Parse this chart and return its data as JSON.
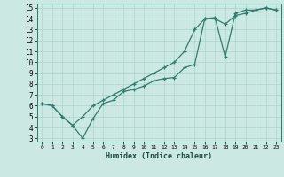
{
  "xlabel": "Humidex (Indice chaleur)",
  "bg_color": "#cce8e2",
  "line_color": "#2e7d6e",
  "grid_color": "#aad4cc",
  "xlim": [
    -0.5,
    23.5
  ],
  "ylim": [
    2.7,
    15.4
  ],
  "xticks": [
    0,
    1,
    2,
    3,
    4,
    5,
    6,
    7,
    8,
    9,
    10,
    11,
    12,
    13,
    14,
    15,
    16,
    17,
    18,
    19,
    20,
    21,
    22,
    23
  ],
  "yticks": [
    3,
    4,
    5,
    6,
    7,
    8,
    9,
    10,
    11,
    12,
    13,
    14,
    15
  ],
  "line1_x": [
    0,
    1,
    2,
    3,
    4,
    5,
    6,
    7,
    8,
    9,
    10,
    11,
    12,
    13,
    14,
    15,
    16,
    17,
    18,
    19,
    20,
    21,
    22,
    23
  ],
  "line1_y": [
    6.2,
    6.0,
    5.0,
    4.2,
    3.0,
    4.8,
    6.2,
    6.5,
    7.3,
    7.5,
    7.8,
    8.3,
    8.5,
    8.6,
    9.5,
    9.8,
    14.0,
    14.1,
    10.5,
    14.5,
    14.8,
    14.8,
    15.0,
    14.8
  ],
  "line2_x": [
    0,
    1,
    2,
    3,
    4,
    5,
    6,
    7,
    8,
    9,
    10,
    11,
    12,
    13,
    14,
    15,
    16,
    17,
    18,
    19,
    20,
    21,
    22,
    23
  ],
  "line2_y": [
    6.2,
    6.0,
    5.0,
    4.2,
    5.0,
    6.0,
    6.5,
    7.0,
    7.5,
    8.0,
    8.5,
    9.0,
    9.5,
    10.0,
    11.0,
    13.0,
    14.0,
    14.0,
    13.5,
    14.3,
    14.5,
    14.8,
    15.0,
    14.8
  ],
  "tick_fontsize_x": 4.5,
  "tick_fontsize_y": 5.5,
  "xlabel_fontsize": 6.0,
  "linewidth": 0.9,
  "markersize": 3.5
}
